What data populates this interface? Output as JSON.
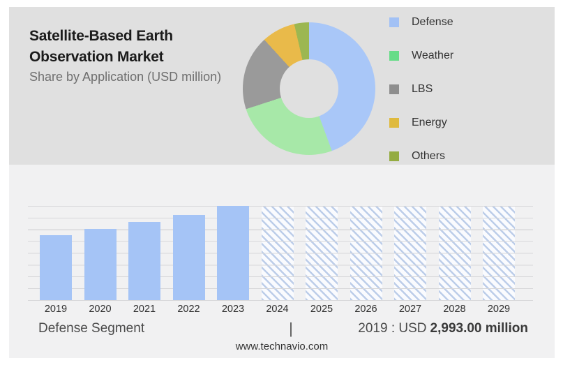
{
  "header": {
    "title_line1": "Satellite-Based Earth",
    "title_line2": "Observation Market",
    "subtitle": "Share by Application (USD million)"
  },
  "legend": {
    "items": [
      {
        "label": "Defense",
        "color": "#a2c1f5"
      },
      {
        "label": "Weather",
        "color": "#67dc88"
      },
      {
        "label": "LBS",
        "color": "#8e8e8e"
      },
      {
        "label": "Energy",
        "color": "#dfba3e"
      },
      {
        "label": "Others",
        "color": "#94ac41"
      }
    ]
  },
  "chart_data": [
    {
      "type": "pie",
      "subtype": "donut",
      "title": "Share by Application (USD million)",
      "legend_position": "right",
      "start_angle_deg": 0,
      "clockwise": true,
      "inner_radius_ratio": 0.44,
      "segments": [
        {
          "label": "Defense",
          "percent": 44.4,
          "color": "#a9c7f8"
        },
        {
          "label": "Weather",
          "percent": 25.6,
          "color": "#a7e8a8"
        },
        {
          "label": "LBS",
          "percent": 18.2,
          "color": "#9a9a9a"
        },
        {
          "label": "Energy",
          "percent": 8.2,
          "color": "#e9ba4a"
        },
        {
          "label": "Others",
          "percent": 3.6,
          "color": "#9cb751"
        }
      ]
    },
    {
      "type": "bar",
      "categories": [
        "2019",
        "2020",
        "2021",
        "2022",
        "2023",
        "2024",
        "2025",
        "2026",
        "2027",
        "2028",
        "2029"
      ],
      "actual_years": [
        "2019",
        "2020",
        "2021",
        "2022",
        "2023"
      ],
      "forecast_years": [
        "2024",
        "2025",
        "2026",
        "2027",
        "2028",
        "2029"
      ],
      "relative_heights": [
        0.689,
        0.753,
        0.827,
        0.906,
        1.0,
        1.0,
        1.0,
        1.0,
        1.0,
        1.0,
        1.0
      ],
      "values_estimated_usd_million": [
        2993,
        3270,
        3590,
        3930,
        4340,
        null,
        null,
        null,
        null,
        null,
        null
      ],
      "labeled_value": {
        "year": "2019",
        "value": "2,993.00",
        "unit": "USD million"
      },
      "forecast_style": "hatched-full-height-placeholder",
      "bar_color": "#a5c4f6",
      "hatch_line_color": "#bccde9",
      "grid": true,
      "gridline_count": 9,
      "ylabel": "",
      "xlabel": ""
    }
  ],
  "footer": {
    "segment_label": "Defense Segment",
    "separator": "|",
    "value_prefix": "2019 : USD",
    "value_bold": "2,993.00 million",
    "website": "www.technavio.com"
  }
}
